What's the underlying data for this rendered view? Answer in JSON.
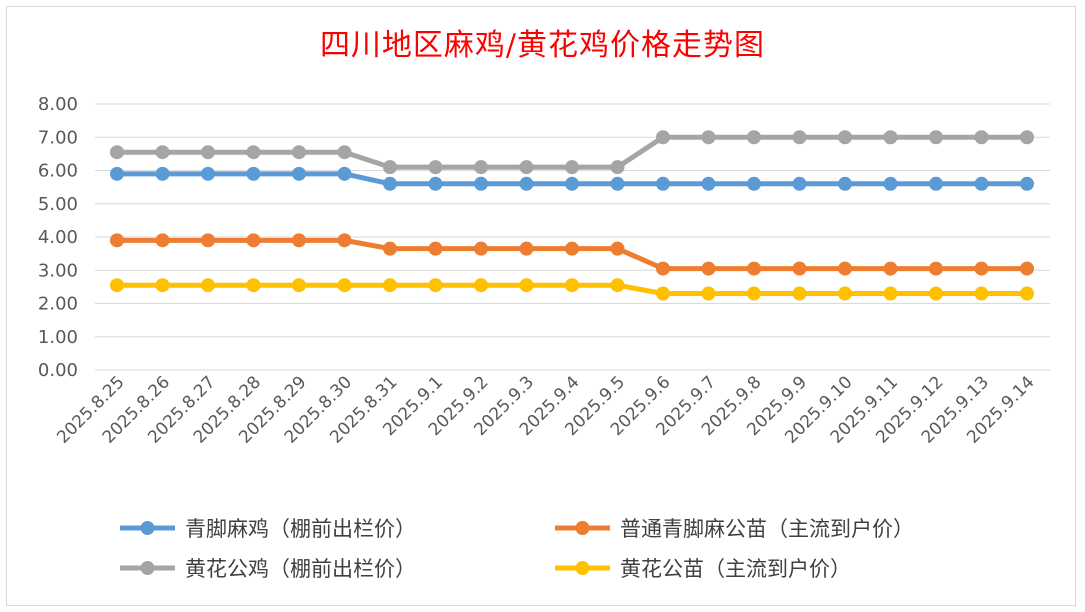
{
  "chart_data": {
    "type": "line",
    "title": "四川地区麻鸡/黄花鸡价格走势图",
    "categories": [
      "2025.8.25",
      "2025.8.26",
      "2025.8.27",
      "2025.8.28",
      "2025.8.29",
      "2025.8.30",
      "2025.8.31",
      "2025.9.1",
      "2025.9.2",
      "2025.9.3",
      "2025.9.4",
      "2025.9.5",
      "2025.9.6",
      "2025.9.7",
      "2025.9.8",
      "2025.9.9",
      "2025.9.10",
      "2025.9.11",
      "2025.9.12",
      "2025.9.13",
      "2025.9.14"
    ],
    "y_ticks": [
      "8.00",
      "7.00",
      "6.00",
      "5.00",
      "4.00",
      "3.00",
      "2.00",
      "1.00",
      "0.00"
    ],
    "ylim": [
      0,
      8
    ],
    "grid": true,
    "legend_position": "bottom",
    "series": [
      {
        "name": "青脚麻鸡（棚前出栏价）",
        "color": "#5b9bd5",
        "values": [
          5.9,
          5.9,
          5.9,
          5.9,
          5.9,
          5.9,
          5.6,
          5.6,
          5.6,
          5.6,
          5.6,
          5.6,
          5.6,
          5.6,
          5.6,
          5.6,
          5.6,
          5.6,
          5.6,
          5.6,
          5.6
        ]
      },
      {
        "name": "普通青脚麻公苗（主流到户价）",
        "color": "#ed7d31",
        "values": [
          3.9,
          3.9,
          3.9,
          3.9,
          3.9,
          3.9,
          3.65,
          3.65,
          3.65,
          3.65,
          3.65,
          3.65,
          3.05,
          3.05,
          3.05,
          3.05,
          3.05,
          3.05,
          3.05,
          3.05,
          3.05
        ]
      },
      {
        "name": "黄花公鸡（棚前出栏价）",
        "color": "#a5a5a5",
        "values": [
          6.55,
          6.55,
          6.55,
          6.55,
          6.55,
          6.55,
          6.1,
          6.1,
          6.1,
          6.1,
          6.1,
          6.1,
          7.0,
          7.0,
          7.0,
          7.0,
          7.0,
          7.0,
          7.0,
          7.0,
          7.0
        ]
      },
      {
        "name": "黄花公苗（主流到户价）",
        "color": "#ffc000",
        "values": [
          2.55,
          2.55,
          2.55,
          2.55,
          2.55,
          2.55,
          2.55,
          2.55,
          2.55,
          2.55,
          2.55,
          2.55,
          2.3,
          2.3,
          2.3,
          2.3,
          2.3,
          2.3,
          2.3,
          2.3,
          2.3
        ]
      }
    ]
  }
}
